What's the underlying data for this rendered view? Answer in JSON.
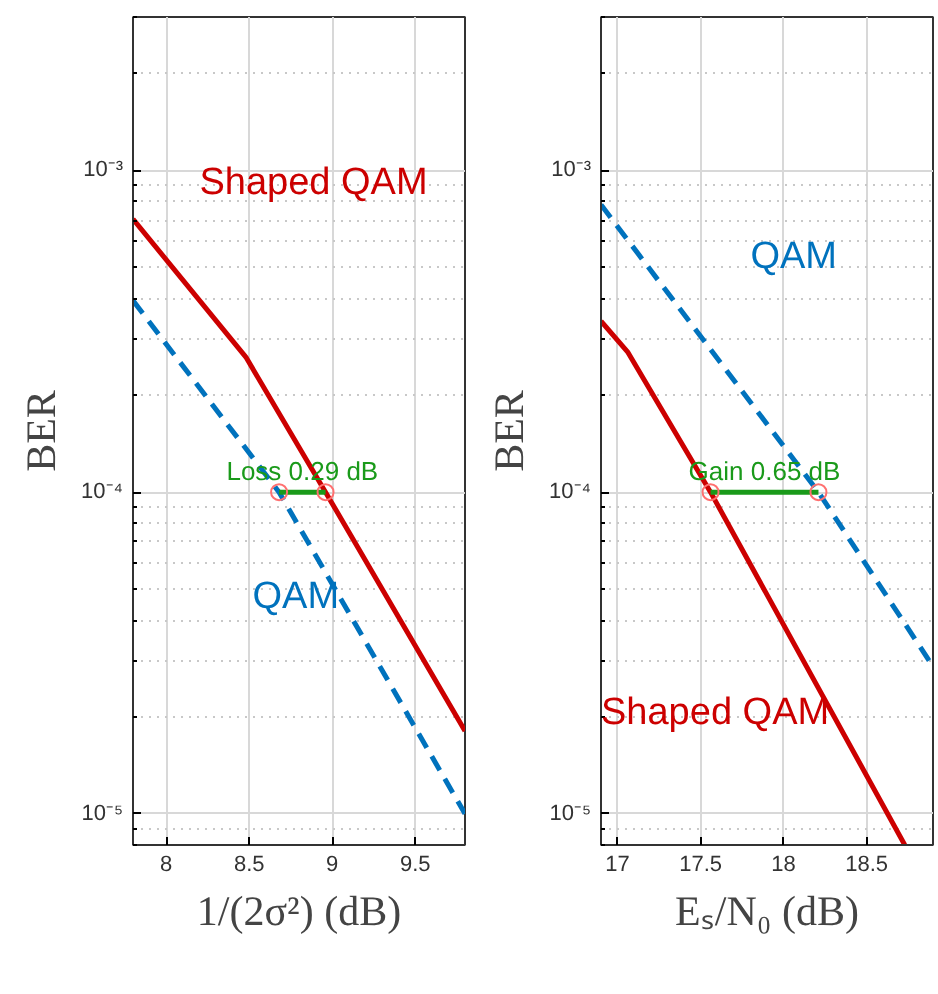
{
  "chart_data": [
    {
      "type": "line",
      "xlabel": "1/(2σ²) (dB)",
      "ylabel": "BER",
      "log": "y",
      "grid": true,
      "xlim": [
        7.8,
        9.8
      ],
      "ylim": [
        8e-06,
        0.003
      ],
      "xticks": [
        8,
        8.5,
        9,
        9.5
      ],
      "yticks": [
        {
          "value": 1e-05,
          "label": "10⁻⁵"
        },
        {
          "value": 0.0001,
          "label": "10⁻⁴"
        },
        {
          "value": 0.001,
          "label": "10⁻³"
        }
      ],
      "series": [
        {
          "name": "Shaped QAM",
          "color": "#cc0000",
          "x": [
            7.8,
            8.48,
            8.96,
            9.8
          ],
          "values": [
            0.000706,
            0.000263,
            0.0001,
            1.81e-05
          ],
          "line_style": "solid",
          "marker": "none"
        },
        {
          "name": "QAM",
          "color": "#0072bd",
          "x": [
            7.8,
            8.68,
            9.8
          ],
          "values": [
            0.000394,
            0.0001,
            1e-05
          ],
          "line_style": "dashed",
          "marker": "none"
        },
        {
          "color": "#1a9a1a",
          "x": [
            8.68,
            8.96
          ],
          "values": [
            0.0001,
            0.0001
          ],
          "line_style": "solid",
          "marker": "none"
        },
        {
          "type": "scatter",
          "color": "#ff7070",
          "x": [
            8.68,
            8.96
          ],
          "values": [
            0.0001,
            0.0001
          ],
          "marker": "circle"
        }
      ],
      "annotations": [
        {
          "text": "Loss 0.29 dB",
          "x": 8.82,
          "y": 0.0001
        }
      ]
    },
    {
      "type": "line",
      "xlabel": "Eₛ/N₀ (dB)",
      "ylabel": "BER",
      "log": "y",
      "grid": true,
      "xlim": [
        16.9,
        18.9
      ],
      "ylim": [
        8e-06,
        0.003
      ],
      "xticks": [
        17,
        17.5,
        18,
        18.5
      ],
      "yticks": [
        {
          "value": 1e-05,
          "label": "10⁻⁵"
        },
        {
          "value": 0.0001,
          "label": "10⁻⁴"
        },
        {
          "value": 0.001,
          "label": "10⁻³"
        }
      ],
      "series": [
        {
          "name": "Shaped QAM",
          "color": "#cc0000",
          "x": [
            16.9,
            17.06,
            17.56,
            18.73
          ],
          "values": [
            0.00034,
            0.000273,
            0.0001,
            8e-06
          ],
          "line_style": "solid",
          "marker": "none"
        },
        {
          "name": "QAM",
          "color": "#0072bd",
          "x": [
            16.9,
            18.21,
            18.9
          ],
          "values": [
            0.000783,
            0.0001,
            2.87e-05
          ],
          "line_style": "dashed",
          "marker": "none"
        },
        {
          "color": "#1a9a1a",
          "x": [
            17.56,
            18.21
          ],
          "values": [
            0.0001,
            0.0001
          ],
          "line_style": "solid",
          "marker": "none"
        },
        {
          "type": "scatter",
          "color": "#ff7070",
          "x": [
            17.56,
            18.21
          ],
          "values": [
            0.0001,
            0.0001
          ],
          "marker": "circle"
        }
      ],
      "annotations": [
        {
          "text": "Gain 0.65 dB",
          "x": 17.885,
          "y": 0.0001
        }
      ]
    }
  ]
}
